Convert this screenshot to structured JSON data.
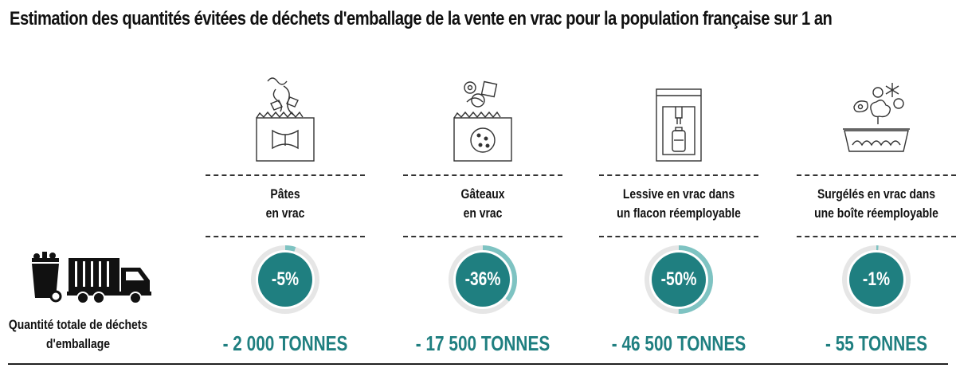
{
  "title": "Estimation des quantités évitées de déchets d'emballage de la vente en vrac pour la population française sur 1 an",
  "total_label": [
    "Quantité totale de déchets",
    "d'emballage"
  ],
  "colors": {
    "accent": "#1f7f80",
    "ring_light": "#7ec3c2",
    "ring_track": "#e6e6e6"
  },
  "icons": [
    "trash-and-truck-icon",
    "pasta-bag-icon",
    "cookies-bag-icon",
    "detergent-dispenser-icon",
    "frozen-food-box-icon"
  ],
  "chart_data": {
    "type": "donut",
    "categories": [
      [
        "Pâtes",
        "en vrac"
      ],
      [
        "Gâteaux",
        "en vrac"
      ],
      [
        "Lessive en vrac dans",
        "un flacon réemployable"
      ],
      [
        "Surgélés en vrac dans",
        "une boîte réemployable"
      ]
    ],
    "percent_labels": [
      "-5%",
      "-36%",
      "-50%",
      "-1%"
    ],
    "values": [
      5,
      36,
      50,
      1
    ],
    "tonnes_labels": [
      "- 2 000 TONNES",
      "- 17 500 TONNES",
      "- 46 500 TONNES",
      "- 55 TONNES"
    ],
    "tonnes_values": [
      2000,
      17500,
      46500,
      55
    ]
  }
}
